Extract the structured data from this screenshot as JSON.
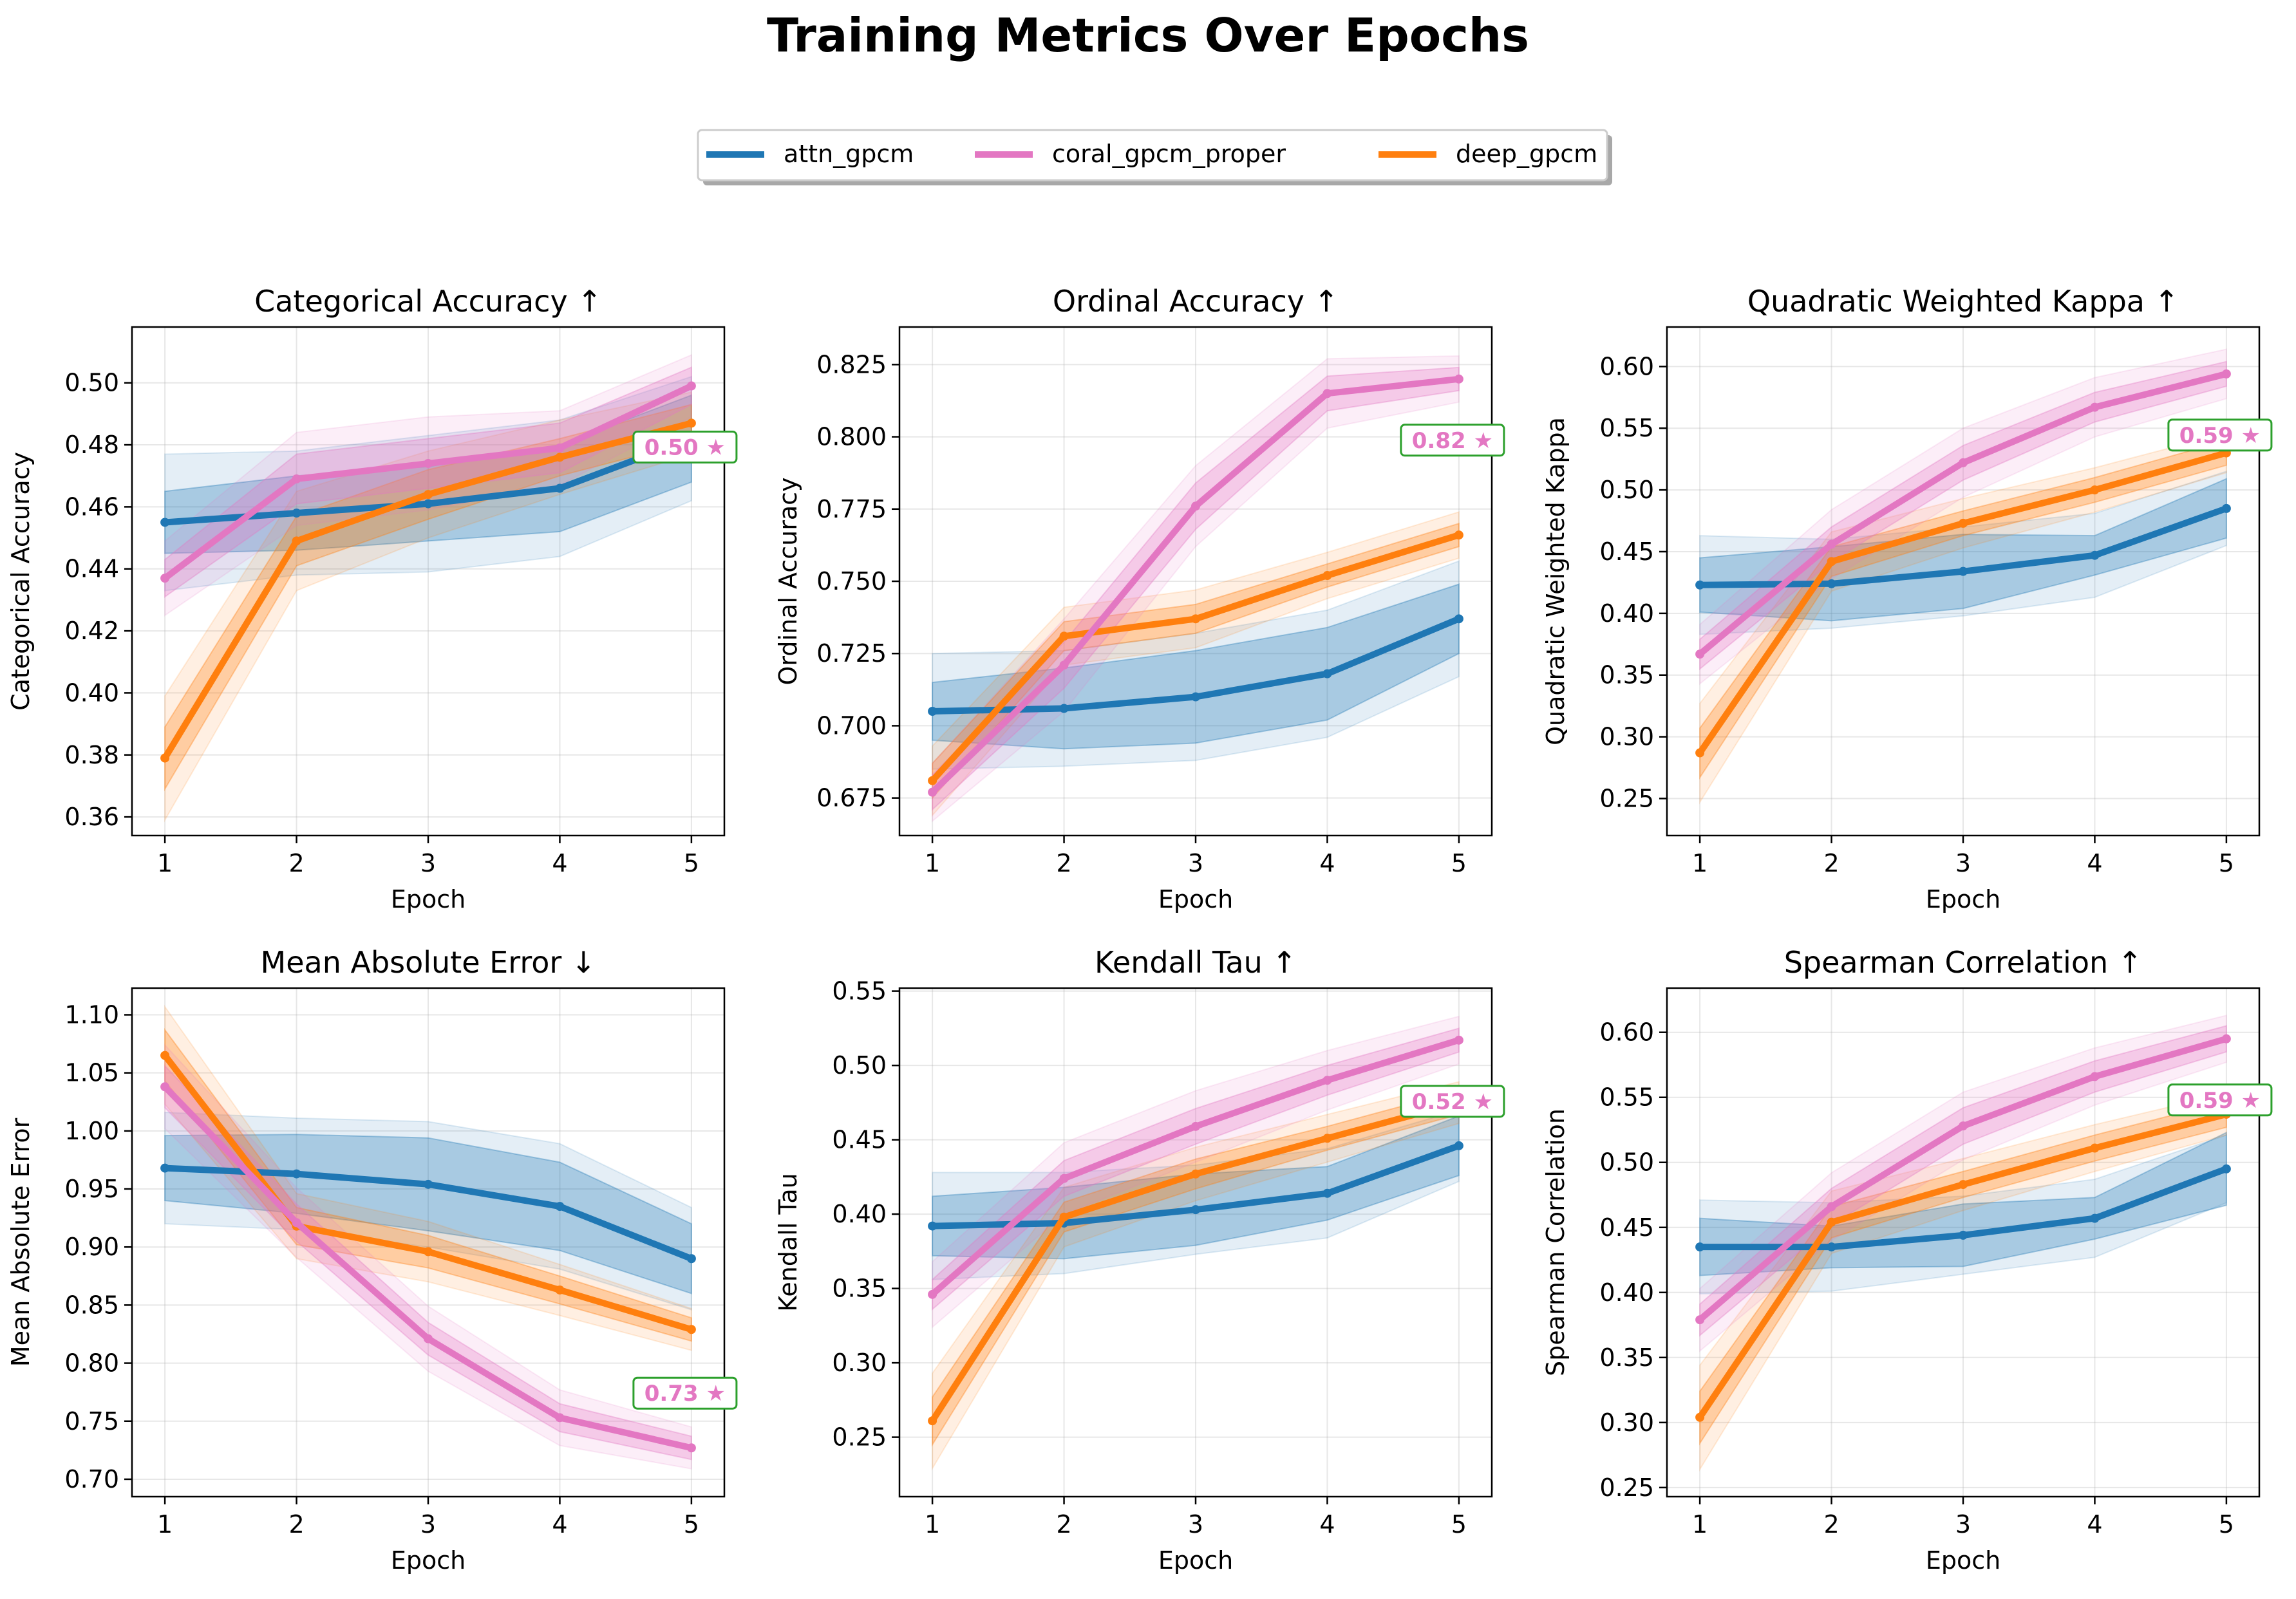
{
  "figure": {
    "title": "Training Metrics Over Epochs"
  },
  "legend": {
    "placement": "top-center",
    "entries": [
      {
        "name": "attn_gpcm",
        "color": "#1f77b4"
      },
      {
        "name": "coral_gpcm_proper",
        "color": "#e377c2"
      },
      {
        "name": "deep_gpcm",
        "color": "#ff7f0e"
      }
    ]
  },
  "colors": {
    "attn_gpcm": "#1f77b4",
    "coral_gpcm_proper": "#e377c2",
    "deep_gpcm": "#ff7f0e",
    "best_box_border": "#2ca02c",
    "grid": "#b0b0b0"
  },
  "chart_data": [
    {
      "type": "line",
      "title": "Categorical Accuracy ↑",
      "xlabel": "Epoch",
      "ylabel": "Categorical Accuracy",
      "x": [
        1,
        2,
        3,
        4,
        5
      ],
      "ylim": [
        0.354,
        0.518
      ],
      "yticks": [
        0.36,
        0.38,
        0.4,
        0.42,
        0.44,
        0.46,
        0.48,
        0.5
      ],
      "ytick_labels": [
        "0.36",
        "0.38",
        "0.40",
        "0.42",
        "0.44",
        "0.46",
        "0.48",
        "0.50"
      ],
      "grid": true,
      "series": [
        {
          "name": "attn_gpcm",
          "values": [
            0.455,
            0.458,
            0.461,
            0.466,
            0.482
          ],
          "inner": [
            0.01,
            0.012,
            0.012,
            0.014,
            0.014
          ],
          "outer": [
            0.022,
            0.02,
            0.022,
            0.022,
            0.02
          ]
        },
        {
          "name": "coral_gpcm_proper",
          "values": [
            0.437,
            0.469,
            0.474,
            0.479,
            0.499
          ],
          "inner": [
            0.006,
            0.008,
            0.008,
            0.008,
            0.006
          ],
          "outer": [
            0.012,
            0.015,
            0.015,
            0.012,
            0.01
          ]
        },
        {
          "name": "deep_gpcm",
          "values": [
            0.379,
            0.449,
            0.464,
            0.476,
            0.487
          ],
          "inner": [
            0.01,
            0.008,
            0.008,
            0.006,
            0.006
          ],
          "outer": [
            0.02,
            0.016,
            0.014,
            0.012,
            0.01
          ]
        }
      ],
      "best_label": "0.50 ★"
    },
    {
      "type": "line",
      "title": "Ordinal Accuracy ↑",
      "xlabel": "Epoch",
      "ylabel": "Ordinal Accuracy",
      "x": [
        1,
        2,
        3,
        4,
        5
      ],
      "ylim": [
        0.662,
        0.838
      ],
      "yticks": [
        0.675,
        0.7,
        0.725,
        0.75,
        0.775,
        0.8,
        0.825
      ],
      "ytick_labels": [
        "0.675",
        "0.700",
        "0.725",
        "0.750",
        "0.775",
        "0.800",
        "0.825"
      ],
      "grid": true,
      "series": [
        {
          "name": "attn_gpcm",
          "values": [
            0.705,
            0.706,
            0.71,
            0.718,
            0.737
          ],
          "inner": [
            0.01,
            0.014,
            0.016,
            0.016,
            0.012
          ],
          "outer": [
            0.02,
            0.02,
            0.022,
            0.022,
            0.02
          ]
        },
        {
          "name": "coral_gpcm_proper",
          "values": [
            0.677,
            0.721,
            0.776,
            0.815,
            0.82
          ],
          "inner": [
            0.006,
            0.008,
            0.008,
            0.006,
            0.004
          ],
          "outer": [
            0.01,
            0.016,
            0.014,
            0.012,
            0.008
          ]
        },
        {
          "name": "deep_gpcm",
          "values": [
            0.681,
            0.731,
            0.737,
            0.752,
            0.766
          ],
          "inner": [
            0.006,
            0.005,
            0.005,
            0.004,
            0.004
          ],
          "outer": [
            0.012,
            0.01,
            0.01,
            0.008,
            0.008
          ]
        }
      ],
      "best_label": "0.82 ★"
    },
    {
      "type": "line",
      "title": "Quadratic Weighted Kappa ↑",
      "xlabel": "Epoch",
      "ylabel": "Quadratic Weighted Kappa",
      "x": [
        1,
        2,
        3,
        4,
        5
      ],
      "ylim": [
        0.22,
        0.632
      ],
      "yticks": [
        0.25,
        0.3,
        0.35,
        0.4,
        0.45,
        0.5,
        0.55,
        0.6
      ],
      "ytick_labels": [
        "0.25",
        "0.30",
        "0.35",
        "0.40",
        "0.45",
        "0.50",
        "0.55",
        "0.60"
      ],
      "grid": true,
      "series": [
        {
          "name": "attn_gpcm",
          "values": [
            0.423,
            0.424,
            0.434,
            0.447,
            0.485
          ],
          "inner": [
            0.022,
            0.03,
            0.03,
            0.016,
            0.024
          ],
          "outer": [
            0.04,
            0.036,
            0.036,
            0.034,
            0.03
          ]
        },
        {
          "name": "coral_gpcm_proper",
          "values": [
            0.367,
            0.456,
            0.522,
            0.567,
            0.594
          ],
          "inner": [
            0.012,
            0.014,
            0.014,
            0.012,
            0.01
          ],
          "outer": [
            0.024,
            0.028,
            0.028,
            0.024,
            0.02
          ]
        },
        {
          "name": "deep_gpcm",
          "values": [
            0.287,
            0.442,
            0.473,
            0.5,
            0.53
          ],
          "inner": [
            0.02,
            0.012,
            0.01,
            0.01,
            0.01
          ],
          "outer": [
            0.04,
            0.024,
            0.02,
            0.018,
            0.016
          ]
        }
      ],
      "best_label": "0.59 ★"
    },
    {
      "type": "line",
      "title": "Mean Absolute Error ↓",
      "xlabel": "Epoch",
      "ylabel": "Mean Absolute Error",
      "x": [
        1,
        2,
        3,
        4,
        5
      ],
      "ylim": [
        0.685,
        1.123
      ],
      "yticks": [
        0.7,
        0.75,
        0.8,
        0.85,
        0.9,
        0.95,
        1.0,
        1.05,
        1.1
      ],
      "ytick_labels": [
        "0.70",
        "0.75",
        "0.80",
        "0.85",
        "0.90",
        "0.95",
        "1.00",
        "1.05",
        "1.10"
      ],
      "grid": true,
      "series": [
        {
          "name": "attn_gpcm",
          "values": [
            0.968,
            0.963,
            0.954,
            0.935,
            0.89
          ],
          "inner": [
            0.028,
            0.034,
            0.04,
            0.038,
            0.03
          ],
          "outer": [
            0.048,
            0.048,
            0.054,
            0.054,
            0.044
          ]
        },
        {
          "name": "coral_gpcm_proper",
          "values": [
            1.038,
            0.921,
            0.821,
            0.753,
            0.727
          ],
          "inner": [
            0.018,
            0.016,
            0.014,
            0.012,
            0.01
          ],
          "outer": [
            0.036,
            0.03,
            0.028,
            0.024,
            0.018
          ]
        },
        {
          "name": "deep_gpcm",
          "values": [
            1.065,
            0.918,
            0.896,
            0.863,
            0.829
          ],
          "inner": [
            0.022,
            0.016,
            0.014,
            0.012,
            0.01
          ],
          "outer": [
            0.042,
            0.028,
            0.026,
            0.022,
            0.018
          ]
        }
      ],
      "best_label": "0.73 ★"
    },
    {
      "type": "line",
      "title": "Kendall Tau ↑",
      "xlabel": "Epoch",
      "ylabel": "Kendall Tau",
      "x": [
        1,
        2,
        3,
        4,
        5
      ],
      "ylim": [
        0.21,
        0.552
      ],
      "yticks": [
        0.25,
        0.3,
        0.35,
        0.4,
        0.45,
        0.5,
        0.55
      ],
      "ytick_labels": [
        "0.25",
        "0.30",
        "0.35",
        "0.40",
        "0.45",
        "0.50",
        "0.55"
      ],
      "grid": true,
      "series": [
        {
          "name": "attn_gpcm",
          "values": [
            0.392,
            0.394,
            0.403,
            0.414,
            0.446
          ],
          "inner": [
            0.02,
            0.024,
            0.024,
            0.018,
            0.02
          ],
          "outer": [
            0.036,
            0.034,
            0.03,
            0.03,
            0.024
          ]
        },
        {
          "name": "coral_gpcm_proper",
          "values": [
            0.346,
            0.424,
            0.459,
            0.49,
            0.517
          ],
          "inner": [
            0.01,
            0.012,
            0.012,
            0.01,
            0.008
          ],
          "outer": [
            0.022,
            0.024,
            0.024,
            0.02,
            0.016
          ]
        },
        {
          "name": "deep_gpcm",
          "values": [
            0.261,
            0.398,
            0.427,
            0.451,
            0.475
          ],
          "inner": [
            0.016,
            0.01,
            0.01,
            0.008,
            0.008
          ],
          "outer": [
            0.032,
            0.02,
            0.018,
            0.016,
            0.014
          ]
        }
      ],
      "best_label": "0.52 ★"
    },
    {
      "type": "line",
      "title": "Spearman Correlation ↑",
      "xlabel": "Epoch",
      "ylabel": "Spearman Correlation",
      "x": [
        1,
        2,
        3,
        4,
        5
      ],
      "ylim": [
        0.243,
        0.634
      ],
      "yticks": [
        0.25,
        0.3,
        0.35,
        0.4,
        0.45,
        0.5,
        0.55,
        0.6
      ],
      "ytick_labels": [
        "0.25",
        "0.30",
        "0.35",
        "0.40",
        "0.45",
        "0.50",
        "0.55",
        "0.60"
      ],
      "grid": true,
      "series": [
        {
          "name": "attn_gpcm",
          "values": [
            0.435,
            0.435,
            0.444,
            0.457,
            0.495
          ],
          "inner": [
            0.022,
            0.016,
            0.024,
            0.016,
            0.028
          ],
          "outer": [
            0.036,
            0.034,
            0.03,
            0.03,
            0.026
          ]
        },
        {
          "name": "coral_gpcm_proper",
          "values": [
            0.379,
            0.466,
            0.528,
            0.566,
            0.595
          ],
          "inner": [
            0.012,
            0.014,
            0.014,
            0.012,
            0.01
          ],
          "outer": [
            0.024,
            0.026,
            0.026,
            0.022,
            0.018
          ]
        },
        {
          "name": "deep_gpcm",
          "values": [
            0.304,
            0.454,
            0.483,
            0.511,
            0.537
          ],
          "inner": [
            0.02,
            0.012,
            0.01,
            0.01,
            0.01
          ],
          "outer": [
            0.04,
            0.024,
            0.02,
            0.018,
            0.016
          ]
        }
      ],
      "best_label": "0.59 ★"
    }
  ]
}
